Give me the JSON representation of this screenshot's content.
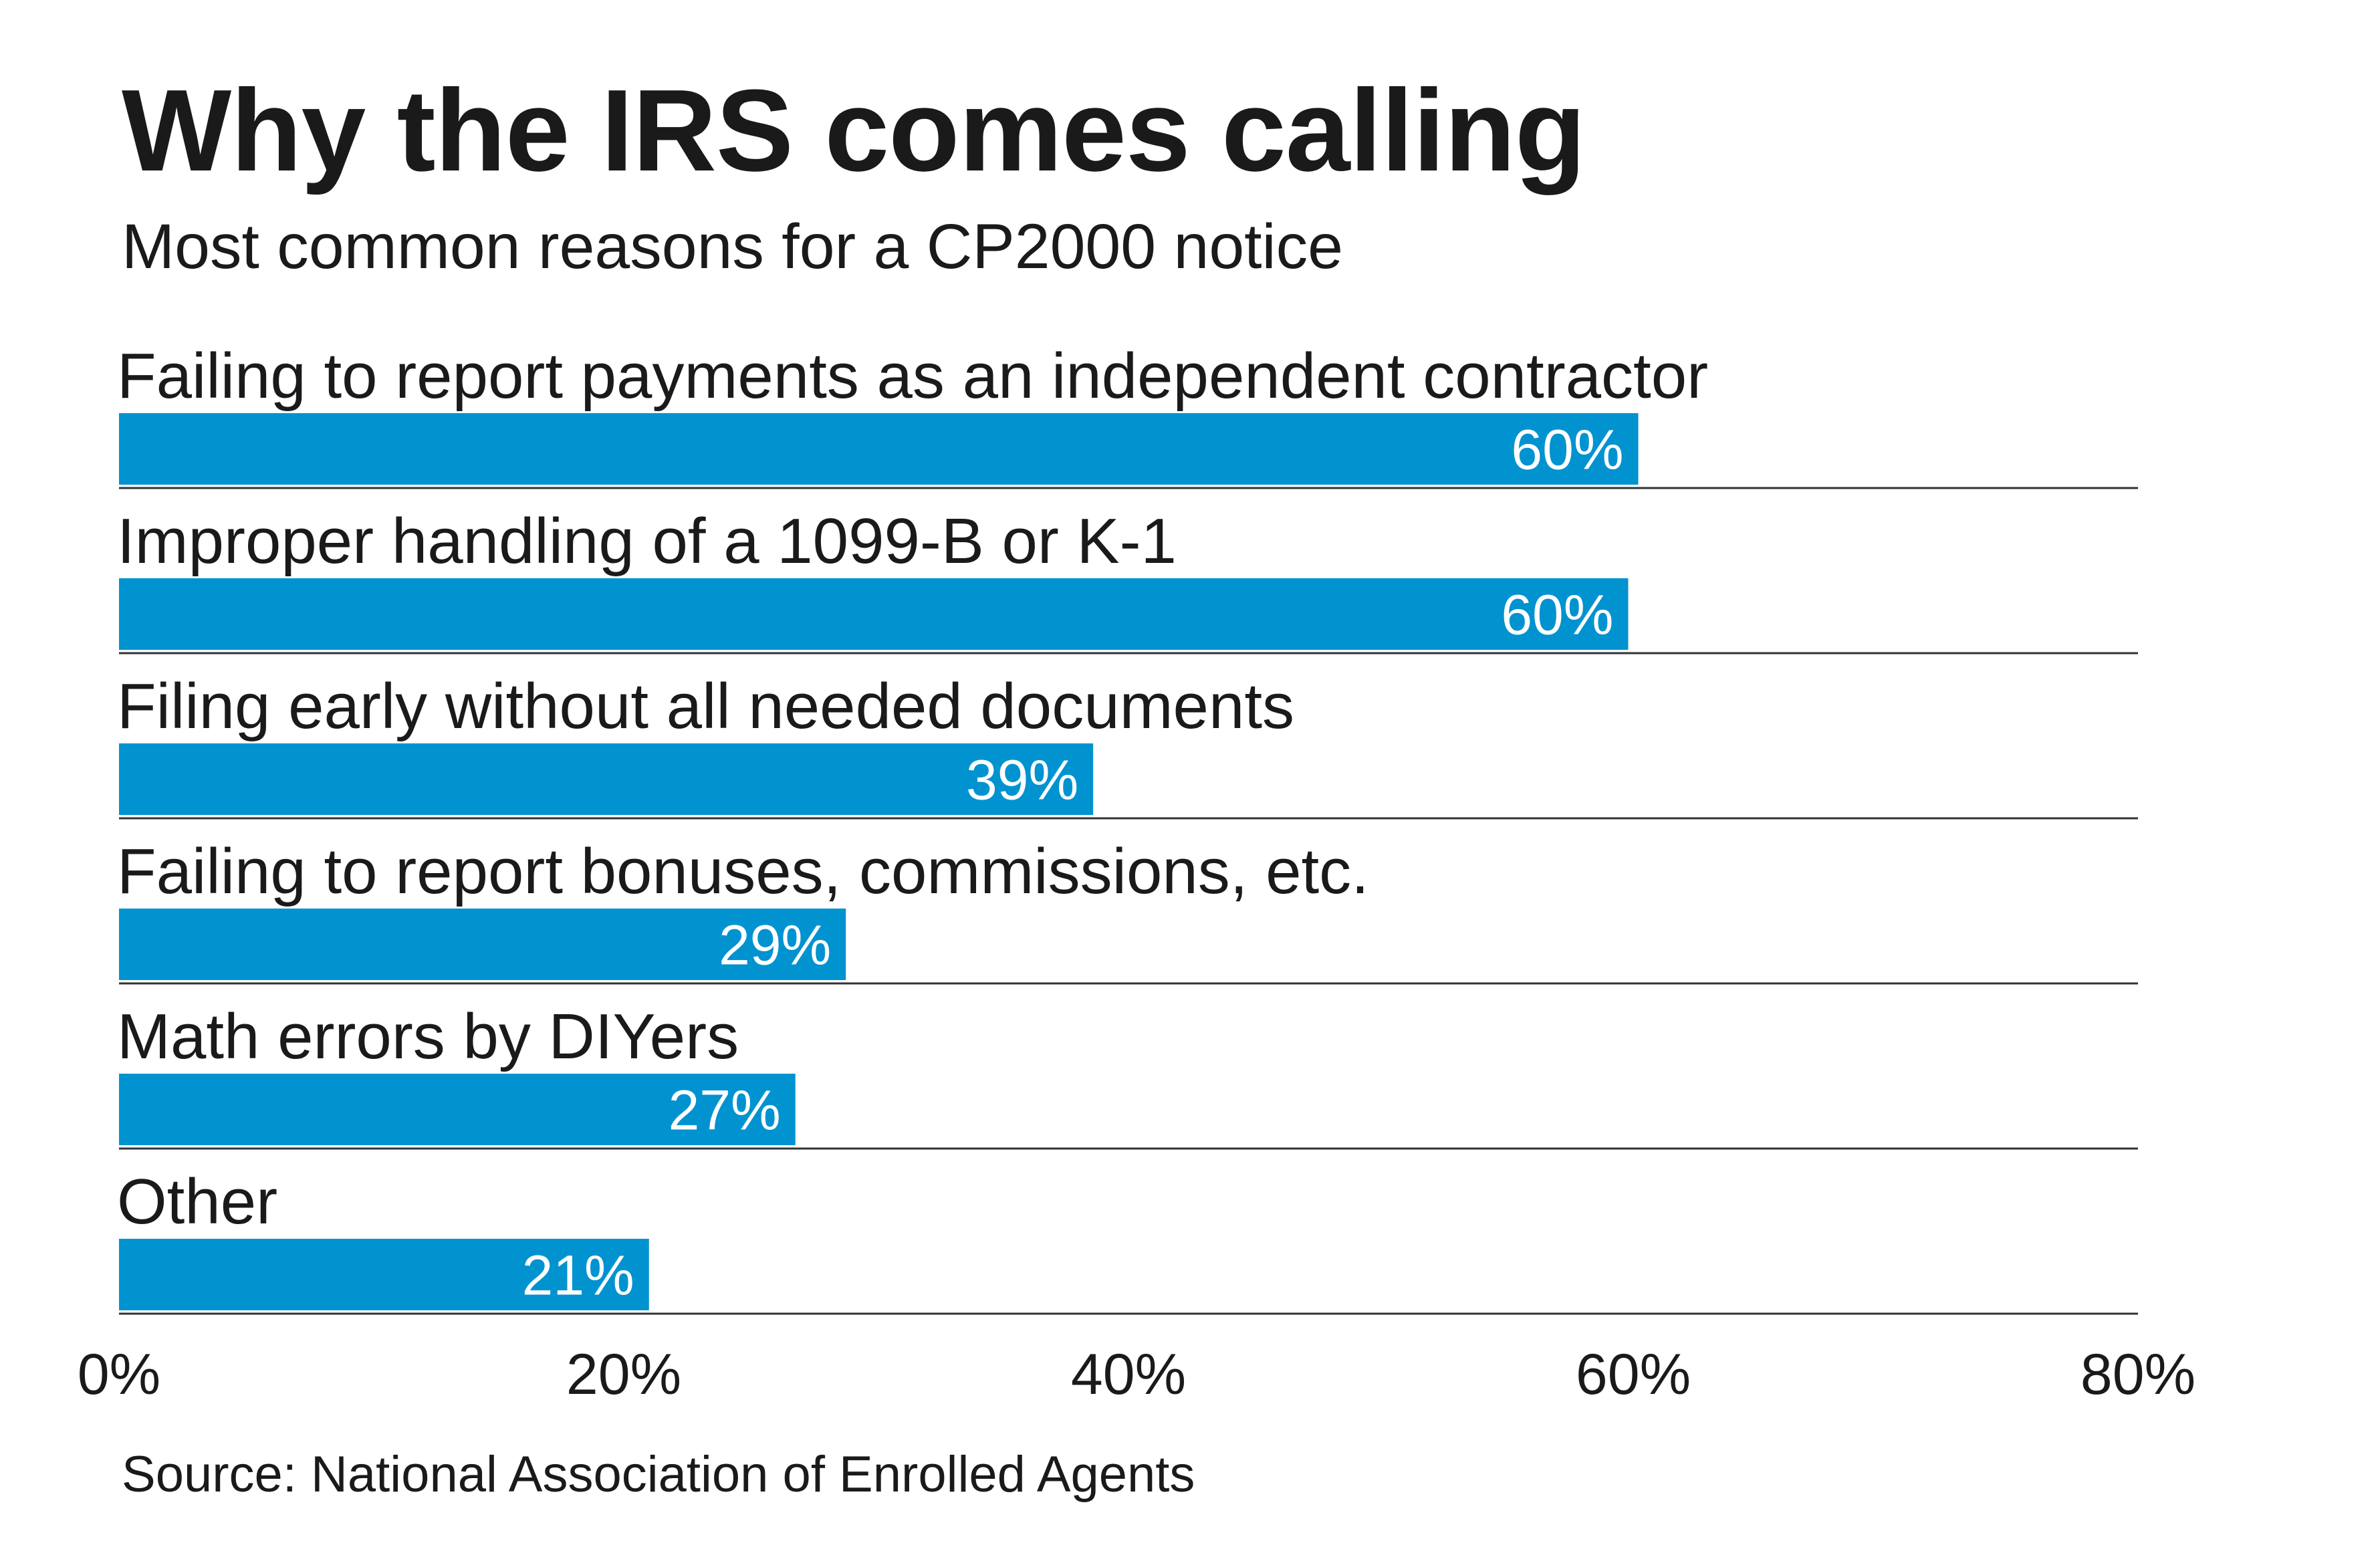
{
  "chart_data": {
    "type": "bar",
    "orientation": "horizontal",
    "title": "Why the IRS comes calling",
    "subtitle": "Most common reasons for a CP2000 notice",
    "source": "Source: National Association of Enrolled Agents",
    "categories": [
      "Failing to report payments as an independent contractor",
      "Improper handling of a 1099-B or K-1",
      "Filing early without all needed documents",
      "Failing to report bonuses, commissions, etc.",
      "Math errors by DIYers",
      "Other"
    ],
    "values": [
      60.2,
      59.8,
      38.6,
      28.8,
      26.8,
      21.0
    ],
    "value_labels": [
      "60%",
      "60%",
      "39%",
      "29%",
      "27%",
      "21%"
    ],
    "xlim": [
      0,
      80
    ],
    "xticks": [
      0,
      20,
      40,
      60,
      80
    ],
    "xtick_labels": [
      "0%",
      "20%",
      "40%",
      "60%",
      "80%"
    ],
    "grid": false,
    "legend": "none",
    "colors": {
      "bar": "#0093d0",
      "separator": "#333333",
      "value_text": "#ffffff"
    }
  }
}
